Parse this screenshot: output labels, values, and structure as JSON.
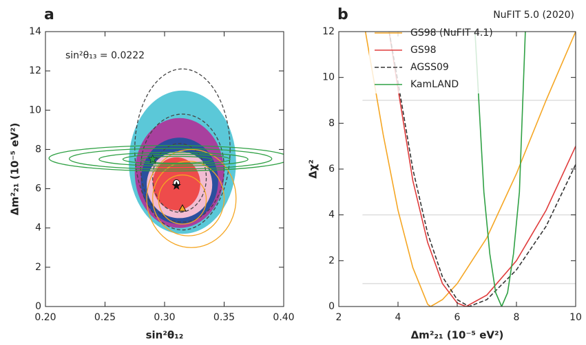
{
  "chart_data": [
    {
      "type": "contour",
      "label": "a",
      "annotation": "sin²θ₁₃ = 0.0222",
      "xlabel": "sin²θ₁₂",
      "ylabel": "Δm²₂₁ (10⁻⁵ eV²)",
      "xlim": [
        0.2,
        0.4
      ],
      "ylim": [
        0,
        14
      ],
      "xticks": [
        {
          "value": 0.2,
          "label": "0.20"
        },
        0.25,
        {
          "value": 0.3,
          "label": "0.30"
        },
        0.35,
        {
          "value": 0.4,
          "label": "0.40"
        }
      ],
      "yticks": [
        0,
        2,
        4,
        6,
        8,
        10,
        12,
        14
      ],
      "contours": [
        {
          "color": "#5bc8d8",
          "fill": true,
          "ellipses": [
            {
              "x": [
                0.27,
                0.36
              ],
              "y": [
                3.7,
                11.0
              ]
            }
          ]
        },
        {
          "color": "#a8409e",
          "fill": true,
          "ellipses": [
            {
              "x": [
                0.275,
                0.35
              ],
              "y": [
                4.0,
                9.6
              ]
            }
          ]
        },
        {
          "color": "#2b4f9e",
          "fill": true,
          "ellipses": [
            {
              "x": [
                0.28,
                0.345
              ],
              "y": [
                4.2,
                8.6
              ]
            }
          ]
        },
        {
          "color": "#f2bcd2",
          "fill": true,
          "ellipses": [
            {
              "x": [
                0.285,
                0.34
              ],
              "y": [
                4.5,
                7.9
              ]
            }
          ]
        },
        {
          "color": "#ee4b4b",
          "fill": true,
          "ellipses": [
            {
              "x": [
                0.29,
                0.33
              ],
              "y": [
                4.9,
                7.6
              ]
            }
          ]
        },
        {
          "color": "#444444",
          "dashed": true,
          "ellipses": [
            {
              "x": [
                0.275,
                0.355
              ],
              "y": [
                3.9,
                12.1
              ]
            },
            {
              "x": [
                0.28,
                0.35
              ],
              "y": [
                4.3,
                9.8
              ]
            },
            {
              "x": [
                0.29,
                0.335
              ],
              "y": [
                4.8,
                8.3
              ]
            }
          ]
        },
        {
          "color": "#f5a623",
          "ellipses": [
            {
              "x": [
                0.285,
                0.36
              ],
              "y": [
                3.0,
                8.0
              ]
            },
            {
              "x": [
                0.29,
                0.35
              ],
              "y": [
                3.6,
                7.4
              ]
            },
            {
              "x": [
                0.295,
                0.335
              ],
              "y": [
                4.2,
                6.7
              ]
            }
          ]
        },
        {
          "color": "#2ea043",
          "ellipses": [
            {
              "x": [
                0.203,
                0.405
              ],
              "y": [
                6.9,
                8.2
              ]
            },
            {
              "x": [
                0.22,
                0.39
              ],
              "y": [
                7.0,
                8.05
              ]
            },
            {
              "x": [
                0.245,
                0.37
              ],
              "y": [
                7.15,
                7.85
              ]
            },
            {
              "x": [
                0.265,
                0.355
              ],
              "y": [
                7.25,
                7.75
              ]
            },
            {
              "x": [
                0.28,
                0.34
              ],
              "y": [
                7.3,
                7.65
              ]
            }
          ]
        }
      ],
      "points": [
        {
          "shape": "circle",
          "color": "#ffffff",
          "x": 0.31,
          "y": 6.3
        },
        {
          "shape": "star",
          "color": "#111111",
          "x": 0.31,
          "y": 6.15
        },
        {
          "shape": "star",
          "color": "#2ea043",
          "x": 0.29,
          "y": 7.5
        },
        {
          "shape": "triangle",
          "color": "#f5a623",
          "x": 0.315,
          "y": 5.0
        }
      ]
    },
    {
      "type": "line",
      "label": "b",
      "title": "NuFIT 5.0 (2020)",
      "xlabel": "Δm²₂₁ (10⁻⁵ eV²)",
      "ylabel": "Δχ²",
      "xlim": [
        2,
        10
      ],
      "ylim": [
        0,
        12
      ],
      "xticks": [
        2,
        4,
        6,
        8,
        10
      ],
      "yticks": [
        0,
        2,
        4,
        6,
        8,
        10,
        12
      ],
      "reference_lines": [
        1,
        4,
        9
      ],
      "series": [
        {
          "name": "GS98 (NuFIT 4.1)",
          "color": "#f5a623",
          "x": [
            2.9,
            3.5,
            4,
            4.5,
            5,
            5.1,
            5.5,
            6,
            7,
            8,
            9,
            10
          ],
          "values": [
            12,
            7.5,
            4.2,
            1.7,
            0.1,
            0,
            0.3,
            1.0,
            3.0,
            5.8,
            9,
            12
          ]
        },
        {
          "name": "GS98",
          "color": "#e03c3c",
          "x": [
            3.7,
            4,
            4.5,
            5,
            5.5,
            6,
            6.3,
            7,
            8,
            9,
            10
          ],
          "values": [
            12,
            9.5,
            5.5,
            2.8,
            1.0,
            0.15,
            0,
            0.5,
            2.0,
            4.2,
            7
          ]
        },
        {
          "name": "AGSS09",
          "color": "#333333",
          "dashed": true,
          "x": [
            3.7,
            4,
            4.5,
            5,
            5.5,
            6,
            6.4,
            7,
            8,
            9,
            10
          ],
          "values": [
            12,
            9.8,
            6,
            3.2,
            1.3,
            0.3,
            0,
            0.3,
            1.6,
            3.5,
            6.2
          ]
        },
        {
          "name": "KamLAND",
          "color": "#2ea043",
          "x": [
            6.6,
            6.9,
            7.1,
            7.3,
            7.5,
            7.7,
            7.9,
            8.1,
            8.3
          ],
          "values": [
            12,
            5,
            2.3,
            0.6,
            0,
            0.6,
            2.3,
            5,
            12
          ]
        }
      ]
    }
  ]
}
